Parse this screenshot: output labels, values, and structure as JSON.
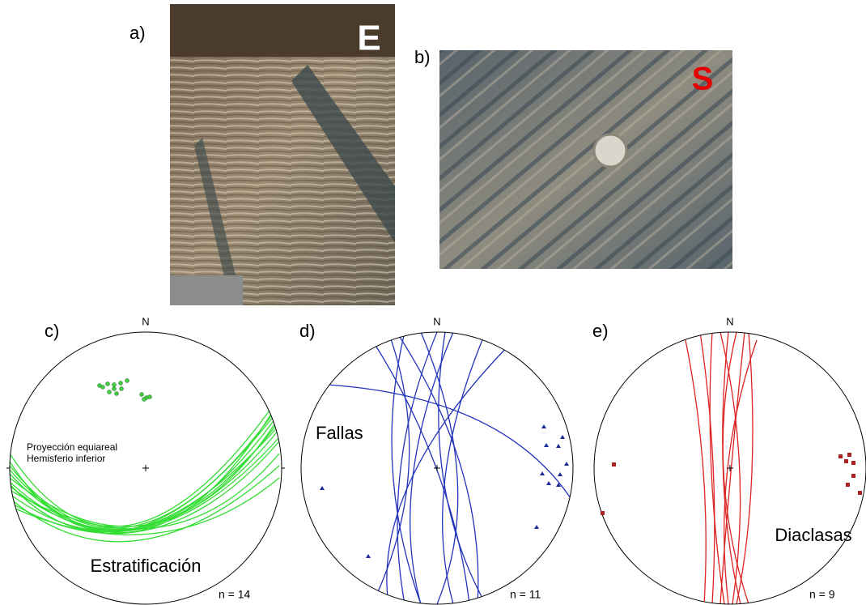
{
  "panels": [
    {
      "label": "a)",
      "letter": "E"
    },
    {
      "label": "b)",
      "letter": "S"
    },
    {
      "label": "c)",
      "north": "N",
      "projection": [
        "Proyección equiareal",
        "Hemisferio inferior"
      ],
      "name": "Estratificación",
      "count": "n = 14"
    },
    {
      "label": "d)",
      "north": "N",
      "name": "Fallas",
      "count": "n = 11"
    },
    {
      "label": "e)",
      "north": "N",
      "name": "Diaclasas",
      "count": "n = 9"
    }
  ]
}
